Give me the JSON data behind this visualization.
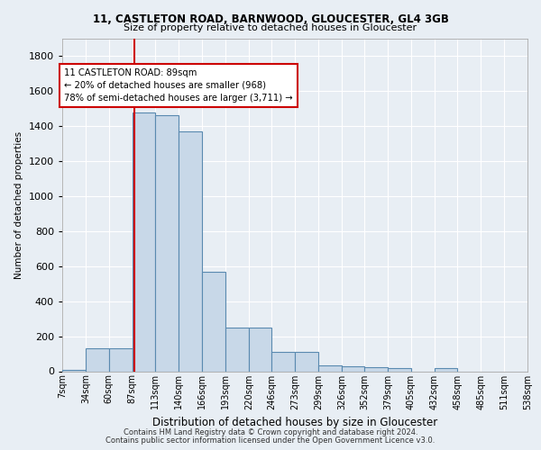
{
  "title1": "11, CASTLETON ROAD, BARNWOOD, GLOUCESTER, GL4 3GB",
  "title2": "Size of property relative to detached houses in Gloucester",
  "xlabel": "Distribution of detached houses by size in Gloucester",
  "ylabel": "Number of detached properties",
  "footnote1": "Contains HM Land Registry data © Crown copyright and database right 2024.",
  "footnote2": "Contains public sector information licensed under the Open Government Licence v3.0.",
  "bar_values": [
    10,
    130,
    130,
    1475,
    1460,
    1370,
    565,
    250,
    250,
    110,
    110,
    35,
    30,
    25,
    20,
    0,
    20,
    0,
    0,
    0
  ],
  "bin_edges": [
    7,
    34,
    60,
    87,
    113,
    140,
    166,
    193,
    220,
    246,
    273,
    299,
    326,
    352,
    379,
    405,
    432,
    458,
    485,
    511,
    538
  ],
  "tick_labels": [
    "7sqm",
    "34sqm",
    "60sqm",
    "87sqm",
    "113sqm",
    "140sqm",
    "166sqm",
    "193sqm",
    "220sqm",
    "246sqm",
    "273sqm",
    "299sqm",
    "326sqm",
    "352sqm",
    "379sqm",
    "405sqm",
    "432sqm",
    "458sqm",
    "485sqm",
    "511sqm",
    "538sqm"
  ],
  "bar_color": "#c8d8e8",
  "bar_edge_color": "#5a8ab0",
  "bg_color": "#e8eef4",
  "grid_color": "#ffffff",
  "vline_x": 89,
  "annotation_text": "11 CASTLETON ROAD: 89sqm\n← 20% of detached houses are smaller (968)\n78% of semi-detached houses are larger (3,711) →",
  "annotation_box_color": "#ffffff",
  "annotation_box_edge": "#cc0000",
  "vline_color": "#cc0000",
  "ylim": [
    0,
    1900
  ],
  "yticks": [
    0,
    200,
    400,
    600,
    800,
    1000,
    1200,
    1400,
    1600,
    1800
  ]
}
